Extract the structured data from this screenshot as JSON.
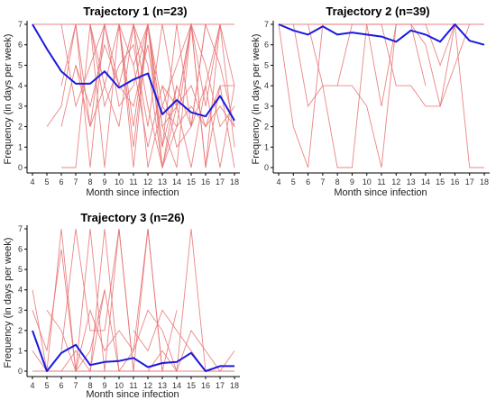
{
  "chart_data": [
    {
      "type": "line",
      "title": "Trajectory 1 (n=23)",
      "xlabel": "Month since infection",
      "ylabel": "Frequency (in days per week)",
      "xlim": [
        4,
        18
      ],
      "ylim": [
        0,
        7
      ],
      "grid": false,
      "colors": {
        "mean": "#1a1adf",
        "individual": "#e87070"
      },
      "x_ticks": [
        4,
        5,
        6,
        7,
        8,
        9,
        10,
        11,
        12,
        13,
        14,
        15,
        16,
        17,
        18
      ],
      "y_ticks": [
        0,
        1,
        2,
        3,
        4,
        5,
        6,
        7
      ],
      "mean": {
        "x": [
          4,
          5,
          6,
          7,
          8,
          9,
          10,
          11,
          12,
          13,
          14,
          15,
          16,
          17,
          18
        ],
        "y": [
          7,
          5.8,
          4.7,
          4.1,
          4.1,
          4.7,
          3.9,
          4.3,
          4.6,
          2.6,
          3.3,
          2.7,
          2.5,
          3.5,
          2.3
        ]
      },
      "individuals": [
        {
          "x": [
            4,
            5,
            6,
            7,
            8,
            9,
            10,
            11,
            12,
            13,
            14,
            15,
            16,
            17,
            18
          ],
          "y": [
            7,
            7,
            7,
            7,
            7,
            7,
            7,
            7,
            7,
            7,
            7,
            7,
            7,
            7,
            7
          ]
        },
        {
          "x": [
            5,
            6,
            7,
            8,
            9,
            10,
            11,
            12,
            13,
            14,
            15,
            16,
            17
          ],
          "y": [
            2,
            3,
            7,
            0,
            7,
            7,
            2,
            7,
            0,
            3,
            7,
            0,
            7
          ]
        },
        {
          "x": [
            6,
            7,
            8,
            9,
            10,
            11,
            12,
            13,
            14,
            15,
            16,
            17,
            18
          ],
          "y": [
            0,
            0,
            7,
            0,
            7,
            0,
            7,
            2,
            0,
            7,
            0,
            4,
            0
          ]
        },
        {
          "x": [
            6,
            7,
            8,
            9,
            10,
            11,
            12,
            13,
            14,
            15,
            16
          ],
          "y": [
            7,
            3,
            5,
            7,
            3,
            4,
            7,
            1,
            4,
            2,
            7
          ]
        },
        {
          "x": [
            7,
            8,
            9,
            10,
            11,
            12,
            13,
            14,
            15
          ],
          "y": [
            7,
            2,
            4,
            7,
            5,
            7,
            3,
            2,
            7
          ]
        },
        {
          "x": [
            6,
            7,
            8,
            9,
            10,
            11,
            12,
            13,
            14,
            15,
            16,
            17,
            18
          ],
          "y": [
            4,
            7,
            7,
            3,
            5,
            6,
            2,
            7,
            3,
            4,
            2,
            3,
            2
          ]
        },
        {
          "x": [
            7,
            8,
            9,
            10,
            11,
            12,
            13,
            14
          ],
          "y": [
            5,
            3,
            6,
            4,
            7,
            5,
            0,
            4
          ]
        },
        {
          "x": [
            8,
            9,
            10,
            11,
            12,
            13,
            14,
            15,
            16,
            17,
            18
          ],
          "y": [
            7,
            4,
            2,
            7,
            0,
            3,
            5,
            7,
            3,
            7,
            4
          ]
        },
        {
          "x": [
            9,
            10,
            11,
            12,
            13,
            14,
            15,
            16,
            17,
            18
          ],
          "y": [
            7,
            4,
            3,
            6,
            1,
            7,
            2,
            4,
            7,
            1
          ]
        },
        {
          "x": [
            10,
            11,
            12,
            13,
            14,
            15,
            16,
            17,
            18
          ],
          "y": [
            7,
            7,
            3,
            0,
            2,
            3,
            2,
            4,
            4
          ]
        },
        {
          "x": [
            6,
            7,
            8,
            9,
            10,
            11,
            12
          ],
          "y": [
            2,
            5,
            2,
            7,
            7,
            1,
            7
          ]
        },
        {
          "x": [
            11,
            12,
            13,
            14,
            15,
            16,
            17,
            18
          ],
          "y": [
            5,
            1,
            4,
            3,
            7,
            5,
            2,
            3
          ]
        },
        {
          "x": [
            12,
            13,
            14,
            15,
            16,
            17,
            18
          ],
          "y": [
            7,
            2,
            3,
            0,
            4,
            0,
            4
          ]
        },
        {
          "x": [
            13,
            14,
            15,
            16,
            17,
            18
          ],
          "y": [
            4,
            1,
            2,
            7,
            5,
            2
          ]
        }
      ]
    },
    {
      "type": "line",
      "title": "Trajectory 2 (n=39)",
      "xlabel": "Month since infection",
      "ylabel": "Frequency (in days per week)",
      "xlim": [
        4,
        18
      ],
      "ylim": [
        0,
        7
      ],
      "grid": false,
      "colors": {
        "mean": "#1a1adf",
        "individual": "#e87070"
      },
      "x_ticks": [
        4,
        5,
        6,
        7,
        8,
        9,
        10,
        11,
        12,
        13,
        14,
        15,
        16,
        17,
        18
      ],
      "y_ticks": [
        0,
        1,
        2,
        3,
        4,
        5,
        6,
        7
      ],
      "mean": {
        "x": [
          4,
          5,
          6,
          7,
          8,
          9,
          10,
          11,
          12,
          13,
          14,
          15,
          16,
          17,
          18
        ],
        "y": [
          7,
          6.7,
          6.5,
          6.9,
          6.5,
          6.6,
          6.5,
          6.4,
          6.15,
          6.7,
          6.5,
          6.15,
          7,
          6.2,
          6.0
        ]
      },
      "individuals": [
        {
          "x": [
            4,
            5,
            6,
            7,
            8,
            9,
            10,
            11,
            12,
            13,
            14,
            15,
            16,
            17,
            18
          ],
          "y": [
            7,
            7,
            7,
            7,
            7,
            7,
            7,
            7,
            7,
            7,
            7,
            7,
            7,
            7,
            7
          ]
        },
        {
          "x": [
            4,
            5,
            6,
            7,
            8,
            9
          ],
          "y": [
            7,
            2,
            0,
            7,
            7,
            7
          ]
        },
        {
          "x": [
            5,
            6,
            7,
            8,
            9,
            10
          ],
          "y": [
            7,
            3,
            4,
            0,
            0,
            7
          ]
        },
        {
          "x": [
            6,
            7,
            8,
            9,
            10,
            11,
            12
          ],
          "y": [
            7,
            4,
            4,
            7,
            7,
            3,
            7
          ]
        },
        {
          "x": [
            8,
            9,
            10,
            11,
            12,
            13,
            14
          ],
          "y": [
            4,
            4,
            3,
            0,
            7,
            7,
            4
          ]
        },
        {
          "x": [
            10,
            11,
            12,
            13,
            14,
            15,
            16,
            17,
            18
          ],
          "y": [
            7,
            7,
            4,
            4,
            3,
            3,
            7,
            0,
            0
          ]
        },
        {
          "x": [
            12,
            13,
            14,
            15,
            16
          ],
          "y": [
            7,
            7,
            7,
            5,
            7
          ]
        },
        {
          "x": [
            13,
            14,
            15,
            16,
            17
          ],
          "y": [
            7,
            6,
            3,
            5,
            7
          ]
        }
      ]
    },
    {
      "type": "line",
      "title": "Trajectory 3 (n=26)",
      "xlabel": "Month since infection",
      "ylabel": "Frequency (in days per week)",
      "xlim": [
        4,
        18
      ],
      "ylim": [
        0,
        7
      ],
      "grid": false,
      "colors": {
        "mean": "#1a1adf",
        "individual": "#e87070"
      },
      "x_ticks": [
        4,
        5,
        6,
        7,
        8,
        9,
        10,
        11,
        12,
        13,
        14,
        15,
        16,
        17,
        18
      ],
      "y_ticks": [
        0,
        1,
        2,
        3,
        4,
        5,
        6,
        7
      ],
      "mean": {
        "x": [
          4,
          5,
          6,
          7,
          8,
          9,
          10,
          11,
          12,
          13,
          14,
          15,
          16,
          17,
          18
        ],
        "y": [
          2,
          0,
          0.9,
          1.3,
          0.3,
          0.45,
          0.5,
          0.65,
          0.2,
          0.4,
          0.45,
          0.9,
          0,
          0.25,
          0.25
        ]
      },
      "individuals": [
        {
          "x": [
            4,
            5,
            6,
            7,
            8,
            9,
            10,
            11,
            12,
            13,
            14,
            15,
            16,
            17,
            18
          ],
          "y": [
            0,
            0,
            0,
            0,
            0,
            0,
            0,
            0,
            0,
            0,
            0,
            0,
            0,
            0,
            0
          ]
        },
        {
          "x": [
            4,
            5,
            6,
            7,
            8,
            9,
            10,
            11,
            12,
            13
          ],
          "y": [
            4,
            0,
            7,
            0,
            0,
            7,
            0,
            0,
            0,
            0
          ]
        },
        {
          "x": [
            4,
            5,
            6,
            7,
            8,
            9,
            10,
            11
          ],
          "y": [
            3,
            1,
            6,
            0,
            7,
            0,
            7,
            0
          ]
        },
        {
          "x": [
            6,
            7,
            8,
            9,
            10,
            11,
            12,
            13,
            14
          ],
          "y": [
            1,
            7,
            2,
            2,
            7,
            0,
            7,
            0,
            3
          ]
        },
        {
          "x": [
            7,
            8,
            9,
            10,
            11,
            12,
            13,
            14,
            15,
            16,
            17
          ],
          "y": [
            0,
            1,
            4,
            0,
            1,
            7,
            0,
            0,
            7,
            0,
            0
          ]
        },
        {
          "x": [
            5,
            6,
            7,
            8,
            9,
            10,
            11,
            12,
            13,
            14
          ],
          "y": [
            3,
            2,
            0,
            3,
            1,
            2,
            1,
            3,
            2,
            0
          ]
        },
        {
          "x": [
            4,
            5,
            6,
            7,
            8,
            9
          ],
          "y": [
            1,
            0,
            0,
            1,
            0,
            4
          ]
        },
        {
          "x": [
            11,
            12,
            13,
            14,
            15,
            16,
            17,
            18
          ],
          "y": [
            2,
            1,
            3,
            2,
            1,
            0,
            0,
            1
          ]
        },
        {
          "x": [
            12,
            13,
            14,
            15,
            16,
            17,
            18
          ],
          "y": [
            0,
            1,
            0,
            2,
            1,
            0,
            0
          ]
        }
      ]
    }
  ]
}
